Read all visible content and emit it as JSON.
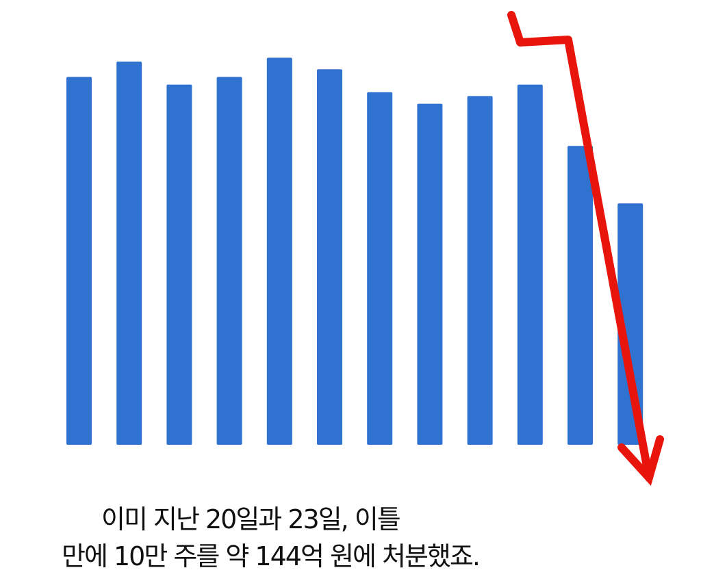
{
  "caption": {
    "line1": "이미 지난 20일과 23일, 이틀",
    "line2": "만에 10만 주를 약 144억 원에 처분했죠."
  },
  "colors": {
    "bar": "#2f72cf",
    "arrow": "#e8150c",
    "background": "#ffffff",
    "text": "#111111"
  },
  "chart_data": {
    "type": "bar",
    "title": "",
    "xlabel": "",
    "ylabel": "",
    "categories": [
      "",
      "",
      "",
      "",
      "",
      "",
      "",
      "",
      "",
      "",
      "",
      ""
    ],
    "values": [
      96,
      100,
      94,
      96,
      101,
      98,
      92,
      89,
      91,
      94,
      78,
      63
    ],
    "ylim": [
      0,
      100
    ],
    "grid": false,
    "annotations": [
      {
        "type": "arrow",
        "direction": "down",
        "description": "red downward trend arrow"
      }
    ]
  }
}
